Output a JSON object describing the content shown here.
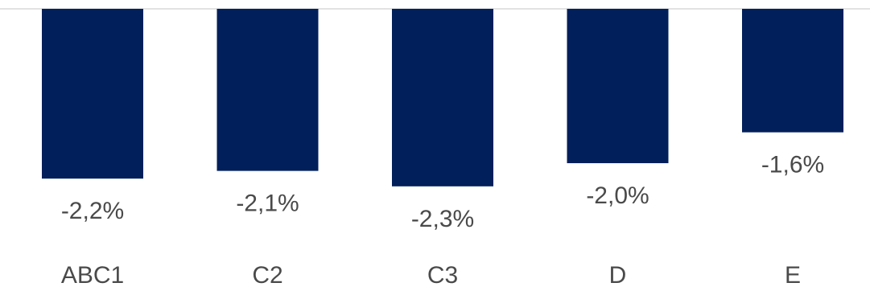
{
  "chart_data": {
    "type": "bar",
    "categories": [
      "ABC1",
      "C2",
      "C3",
      "D",
      "E"
    ],
    "values": [
      -2.2,
      -2.1,
      -2.3,
      -2.0,
      -1.6
    ],
    "data_labels": [
      "-2,2%",
      "-2,1%",
      "-2,3%",
      "-2,0%",
      "-1,6%"
    ],
    "ylim": [
      -2.5,
      0
    ],
    "grid": false,
    "legend": "none",
    "colors": {
      "bar": "#001F5B",
      "baseline": "#d9d9d9",
      "text": "#4a4a4a"
    }
  }
}
